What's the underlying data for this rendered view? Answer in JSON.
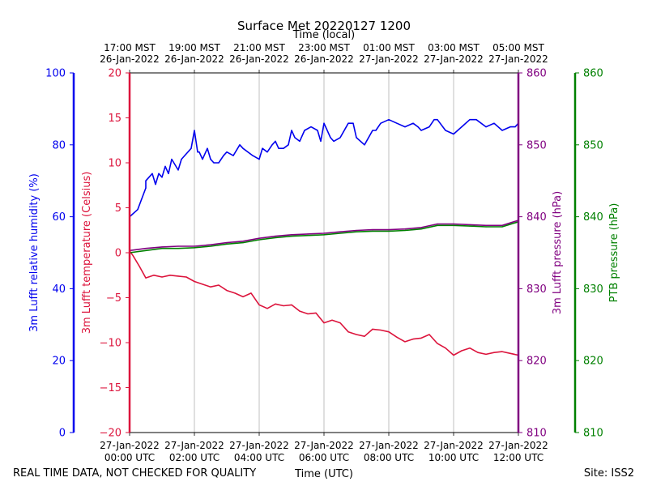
{
  "chart_data": {
    "type": "line",
    "title": "Surface Met 20220127 1200",
    "top_axis_label": "Time (local)",
    "top_ticks": [
      {
        "line1": "17:00 MST",
        "line2": "26-Jan-2022"
      },
      {
        "line1": "19:00 MST",
        "line2": "26-Jan-2022"
      },
      {
        "line1": "21:00 MST",
        "line2": "26-Jan-2022"
      },
      {
        "line1": "23:00 MST",
        "line2": "26-Jan-2022"
      },
      {
        "line1": "01:00 MST",
        "line2": "27-Jan-2022"
      },
      {
        "line1": "03:00 MST",
        "line2": "27-Jan-2022"
      },
      {
        "line1": "05:00 MST",
        "line2": "27-Jan-2022"
      }
    ],
    "bottom_ticks": [
      {
        "line1": "27-Jan-2022",
        "line2": "00:00 UTC"
      },
      {
        "line1": "27-Jan-2022",
        "line2": "02:00 UTC"
      },
      {
        "line1": "27-Jan-2022",
        "line2": "04:00 UTC"
      },
      {
        "line1": "27-Jan-2022",
        "line2": "06:00 UTC"
      },
      {
        "line1": "27-Jan-2022",
        "line2": "08:00 UTC"
      },
      {
        "line1": "27-Jan-2022",
        "line2": "10:00 UTC"
      },
      {
        "line1": "27-Jan-2022",
        "line2": "12:00 UTC"
      }
    ],
    "xlabel": "Time (UTC)",
    "xlim_hours": [
      0,
      12
    ],
    "footer_left": "REAL TIME DATA, NOT CHECKED FOR QUALITY",
    "footer_right": "Site: ISS2",
    "axes": {
      "humidity": {
        "label": "3m Lufft relative humidity (%)",
        "color": "#0000ee",
        "ylim": [
          0,
          100
        ],
        "ticks": [
          "0",
          "20",
          "40",
          "60",
          "80",
          "100"
        ]
      },
      "temperature": {
        "label": "3m Lufft temperature (Celsius)",
        "color": "#dc143c",
        "ylim": [
          -20,
          20
        ],
        "ticks": [
          "−20",
          "−15",
          "−10",
          "−5",
          "0",
          "5",
          "10",
          "15",
          "20"
        ]
      },
      "lufft_pressure": {
        "label": "3m Lufft pressure (hPa)",
        "color": "#800080",
        "ylim": [
          810,
          860
        ],
        "ticks": [
          "810",
          "820",
          "830",
          "840",
          "850",
          "860"
        ]
      },
      "ptb_pressure": {
        "label": "PTB pressure (hPa)",
        "color": "#008000",
        "ylim": [
          810,
          860
        ],
        "ticks": [
          "810",
          "820",
          "830",
          "840",
          "850",
          "860"
        ]
      }
    },
    "series": [
      {
        "name": "3m Lufft relative humidity",
        "axis": "humidity",
        "color": "#0000ee",
        "x": [
          0,
          0.25,
          0.5,
          0.5,
          0.7,
          0.8,
          0.9,
          1.0,
          1.1,
          1.2,
          1.3,
          1.5,
          1.6,
          1.7,
          1.9,
          2.0,
          2.1,
          2.15,
          2.25,
          2.4,
          2.5,
          2.6,
          2.75,
          2.9,
          3.0,
          3.2,
          3.4,
          3.5,
          3.8,
          4.0,
          4.1,
          4.25,
          4.4,
          4.5,
          4.6,
          4.75,
          4.9,
          5.0,
          5.1,
          5.25,
          5.4,
          5.6,
          5.8,
          5.9,
          6.0,
          6.1,
          6.2,
          6.3,
          6.5,
          6.75,
          6.9,
          7.0,
          7.25,
          7.5,
          7.6,
          7.75,
          8.0,
          8.25,
          8.5,
          8.75,
          8.9,
          9.0,
          9.25,
          9.4,
          9.5,
          9.75,
          10.0,
          10.25,
          10.5,
          10.7,
          11.0,
          11.25,
          11.5,
          11.75,
          11.9,
          12.0
        ],
        "values": [
          60,
          62,
          68,
          70,
          72,
          69,
          72,
          71,
          74,
          72,
          76,
          73,
          76,
          77,
          79,
          84,
          78,
          78,
          76,
          79,
          76,
          75,
          75,
          77,
          78,
          77,
          80,
          79,
          77,
          76,
          79,
          78,
          80,
          81,
          79,
          79,
          80,
          84,
          82,
          81,
          84,
          85,
          84,
          81,
          86,
          84,
          82,
          81,
          82,
          86,
          86,
          82,
          80,
          84,
          84,
          86,
          87,
          86,
          85,
          86,
          85,
          84,
          85,
          87,
          87,
          84,
          83,
          85,
          87,
          87,
          85,
          86,
          84,
          85,
          85,
          86
        ]
      },
      {
        "name": "3m Lufft temperature",
        "axis": "temperature",
        "color": "#dc143c",
        "x": [
          0,
          0.1,
          0.3,
          0.5,
          0.75,
          1.0,
          1.25,
          1.5,
          1.75,
          2.0,
          2.25,
          2.5,
          2.75,
          3.0,
          3.25,
          3.5,
          3.75,
          4.0,
          4.25,
          4.5,
          4.75,
          5.0,
          5.25,
          5.5,
          5.75,
          6.0,
          6.25,
          6.5,
          6.75,
          7.0,
          7.25,
          7.5,
          7.75,
          8.0,
          8.25,
          8.5,
          8.75,
          9.0,
          9.25,
          9.5,
          9.75,
          10.0,
          10.25,
          10.5,
          10.75,
          11.0,
          11.25,
          11.5,
          11.75,
          12.0
        ],
        "values": [
          0.2,
          -0.3,
          -1.5,
          -2.8,
          -2.5,
          -2.7,
          -2.5,
          -2.6,
          -2.7,
          -3.2,
          -3.5,
          -3.8,
          -3.6,
          -4.2,
          -4.5,
          -4.9,
          -4.5,
          -5.8,
          -6.2,
          -5.7,
          -5.9,
          -5.8,
          -6.5,
          -6.8,
          -6.7,
          -7.8,
          -7.5,
          -7.8,
          -8.8,
          -9.1,
          -9.3,
          -8.5,
          -8.6,
          -8.8,
          -9.4,
          -9.9,
          -9.6,
          -9.5,
          -9.1,
          -10.1,
          -10.6,
          -11.4,
          -10.9,
          -10.6,
          -11.1,
          -11.3,
          -11.1,
          -11.0,
          -11.2,
          -11.4
        ]
      },
      {
        "name": "3m Lufft pressure",
        "axis": "lufft_pressure",
        "color": "#800080",
        "x": [
          0,
          0.5,
          1.0,
          1.5,
          2.0,
          2.5,
          3.0,
          3.5,
          4.0,
          4.5,
          5.0,
          5.5,
          6.0,
          6.5,
          7.0,
          7.5,
          8.0,
          8.5,
          9.0,
          9.5,
          10.0,
          10.5,
          11.0,
          11.5,
          12.0
        ],
        "values": [
          835.3,
          835.6,
          835.8,
          835.9,
          835.9,
          836.1,
          836.4,
          836.6,
          837.0,
          837.3,
          837.5,
          837.6,
          837.7,
          837.9,
          838.1,
          838.2,
          838.2,
          838.3,
          838.5,
          839.0,
          839.0,
          838.9,
          838.8,
          838.8,
          839.5
        ]
      },
      {
        "name": "PTB pressure",
        "axis": "ptb_pressure",
        "color": "#008000",
        "x": [
          0,
          0.5,
          1.0,
          1.5,
          2.0,
          2.5,
          3.0,
          3.5,
          4.0,
          4.5,
          5.0,
          5.5,
          6.0,
          6.5,
          7.0,
          7.5,
          8.0,
          8.5,
          9.0,
          9.5,
          10.0,
          10.5,
          11.0,
          11.5,
          12.0
        ],
        "values": [
          835.0,
          835.3,
          835.6,
          835.6,
          835.7,
          835.9,
          836.2,
          836.4,
          836.8,
          837.1,
          837.3,
          837.4,
          837.5,
          837.7,
          837.9,
          838.0,
          838.0,
          838.1,
          838.3,
          838.8,
          838.8,
          838.7,
          838.6,
          838.6,
          839.3
        ]
      }
    ]
  }
}
